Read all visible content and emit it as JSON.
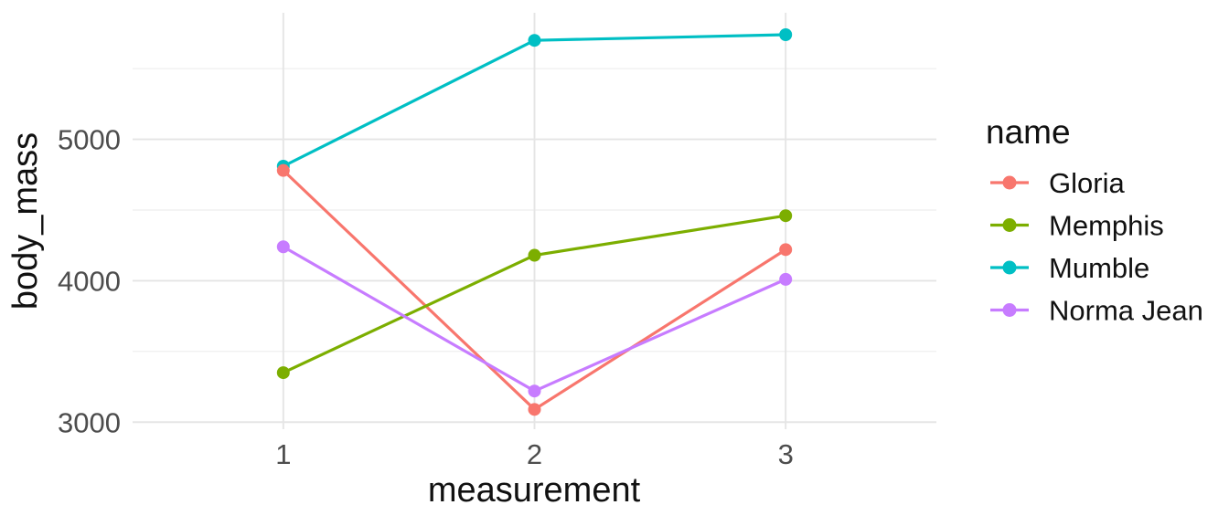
{
  "chart_data": {
    "type": "line",
    "title": "",
    "xlabel": "measurement",
    "ylabel": "body_mass",
    "x": [
      1,
      2,
      3
    ],
    "series": [
      {
        "name": "Gloria",
        "color": "#F8766D",
        "values": [
          4780,
          3090,
          4220
        ]
      },
      {
        "name": "Memphis",
        "color": "#7CAE00",
        "values": [
          3350,
          4180,
          4460
        ]
      },
      {
        "name": "Mumble",
        "color": "#00BFC4",
        "values": [
          4810,
          5700,
          5740
        ]
      },
      {
        "name": "Norma Jean",
        "color": "#C77CFF",
        "values": [
          4240,
          3220,
          4010
        ]
      }
    ],
    "x_ticks": [
      1,
      2,
      3
    ],
    "y_ticks": [
      3000,
      4000,
      5000
    ],
    "y_minor_ticks": [
      3500,
      4500,
      5500
    ],
    "xlim": [
      0.4,
      3.6
    ],
    "ylim": [
      2950,
      5895
    ],
    "grid": true,
    "legend": {
      "title": "name",
      "position": "right"
    }
  },
  "style": {
    "background": "#FFFFFF",
    "grid_major_color": "#E5E5E5",
    "grid_minor_color": "#F0F0F0",
    "tick_label_color": "#4D4D4D",
    "text_color": "#111111",
    "line_width": 3.2,
    "point_radius": 7,
    "legend_point_radius": 7.5
  }
}
